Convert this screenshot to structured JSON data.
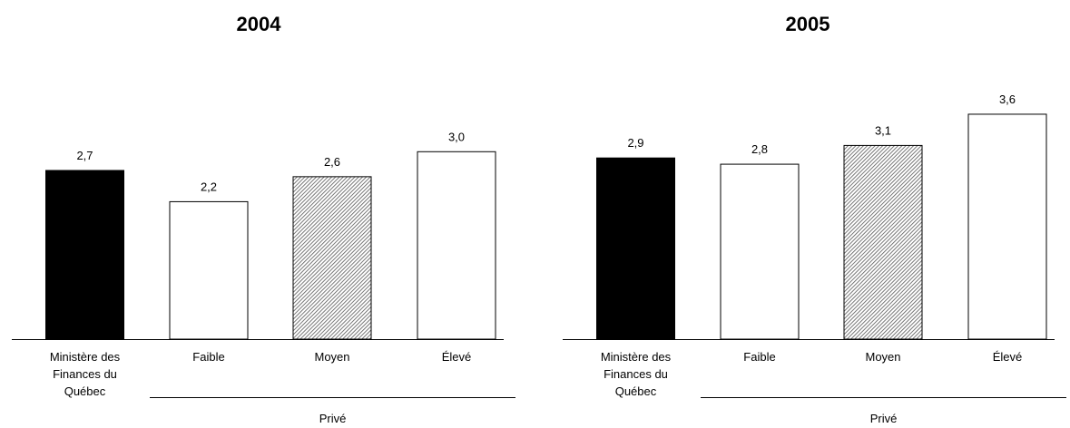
{
  "chart_data": [
    {
      "type": "bar",
      "title": "2004",
      "categories": [
        "Ministère des Finances du Québec",
        "Faible",
        "Moyen",
        "Élevé"
      ],
      "category_lines": [
        [
          "Ministère des",
          "Finances du",
          "Québec"
        ],
        [
          "Faible"
        ],
        [
          "Moyen"
        ],
        [
          "Élevé"
        ]
      ],
      "values": [
        2.7,
        2.2,
        2.6,
        3.0
      ],
      "value_labels": [
        "2,7",
        "2,2",
        "2,6",
        "3,0"
      ],
      "bar_styles": [
        "solid-black",
        "white",
        "hatched-gray",
        "white"
      ],
      "group_label": "Privé",
      "group_categories": [
        "Faible",
        "Moyen",
        "Élevé"
      ],
      "ylim": [
        0,
        4.2
      ],
      "grid": false,
      "legend": "none"
    },
    {
      "type": "bar",
      "title": "2005",
      "categories": [
        "Ministère des Finances du Québec",
        "Faible",
        "Moyen",
        "Élevé"
      ],
      "category_lines": [
        [
          "Ministère des",
          "Finances du",
          "Québec"
        ],
        [
          "Faible"
        ],
        [
          "Moyen"
        ],
        [
          "Élevé"
        ]
      ],
      "values": [
        2.9,
        2.8,
        3.1,
        3.6
      ],
      "value_labels": [
        "2,9",
        "2,8",
        "3,1",
        "3,6"
      ],
      "bar_styles": [
        "solid-black",
        "white",
        "hatched-gray",
        "white"
      ],
      "group_label": "Privé",
      "group_categories": [
        "Faible",
        "Moyen",
        "Élevé"
      ],
      "ylim": [
        0,
        4.2
      ],
      "grid": false,
      "legend": "none"
    }
  ],
  "colors": {
    "bar_fill": "#000000",
    "bar_outline": "#000000",
    "hatch": "#555555",
    "background": "#ffffff"
  }
}
